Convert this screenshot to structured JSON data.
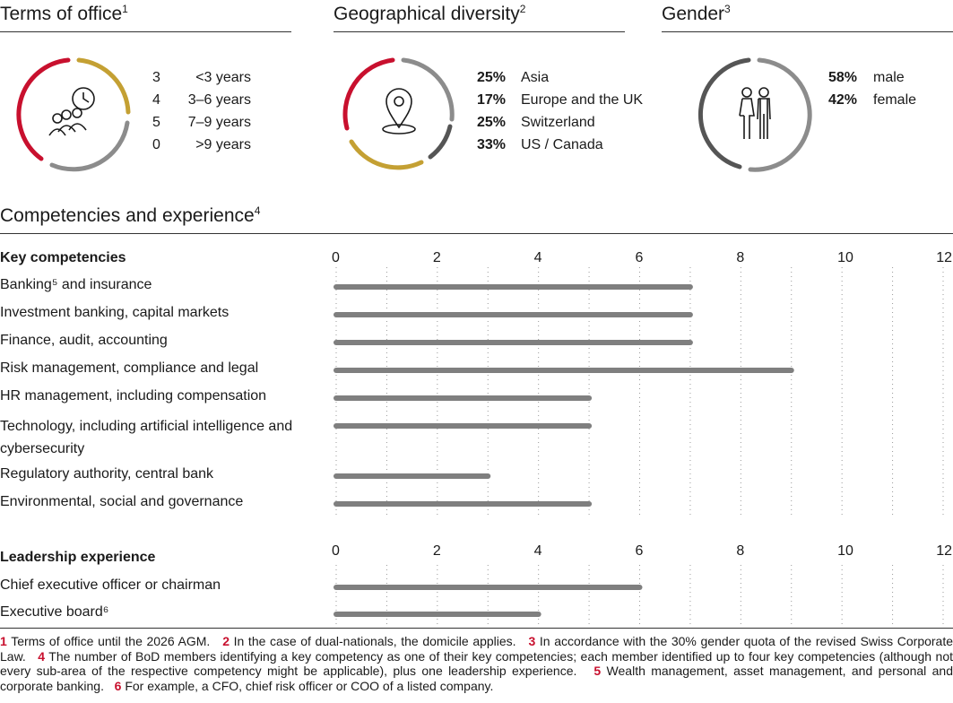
{
  "terms": {
    "title": "Terms of office",
    "sup": "1",
    "rows": [
      {
        "count": "3",
        "label": "<3 years"
      },
      {
        "count": "4",
        "label": "3–6 years"
      },
      {
        "count": "5",
        "label": "7–9 years"
      },
      {
        "count": "0",
        "label": ">9 years"
      }
    ],
    "colors": [
      "#c8102e",
      "#c4a033",
      "#8c8c8c"
    ]
  },
  "geo": {
    "title": "Geographical diversity",
    "sup": "2",
    "rows": [
      {
        "pct": "25%",
        "label": "Asia"
      },
      {
        "pct": "17%",
        "label": "Europe and the UK"
      },
      {
        "pct": "25%",
        "label": "Switzerland"
      },
      {
        "pct": "33%",
        "label": "US / Canada"
      }
    ],
    "colors": [
      "#c8102e",
      "#8c8c8c",
      "#555555",
      "#c4a033"
    ]
  },
  "gender": {
    "title": "Gender",
    "sup": "3",
    "rows": [
      {
        "pct": "58%",
        "label": "male"
      },
      {
        "pct": "42%",
        "label": "female"
      }
    ],
    "colors": [
      "#555555",
      "#8c8c8c"
    ]
  },
  "competencies": {
    "title": "Competencies and experience",
    "sup": "4"
  },
  "chart_data": [
    {
      "type": "bar",
      "title": "Key competencies",
      "categories": [
        "Banking⁵ and insurance",
        "Investment banking, capital markets",
        "Finance, audit, accounting",
        "Risk management, compliance and legal",
        "HR management, including compensation",
        "Technology, including artificial intelligence and cybersecurity",
        "Regulatory authority, central bank",
        "Environmental, social and governance"
      ],
      "values": [
        7,
        7,
        7,
        9,
        5,
        5,
        3,
        5
      ],
      "xlim": [
        0,
        12
      ],
      "ticks": [
        "0",
        "2",
        "4",
        "6",
        "8",
        "10",
        "12"
      ],
      "bar_color": "#7f7f7f"
    },
    {
      "type": "bar",
      "title": "Leadership experience",
      "categories": [
        "Chief executive officer or chairman",
        "Executive board⁶"
      ],
      "values": [
        6,
        4
      ],
      "xlim": [
        0,
        12
      ],
      "ticks": [
        "0",
        "2",
        "4",
        "6",
        "8",
        "10",
        "12"
      ],
      "bar_color": "#7f7f7f"
    }
  ],
  "footnotes": [
    {
      "num": "1",
      "text": "Terms of office until the 2026 AGM."
    },
    {
      "num": "2",
      "text": "In the case of dual-nationals, the domicile applies."
    },
    {
      "num": "3",
      "text": "In accordance with the 30% gender quota of the revised Swiss Corporate Law."
    },
    {
      "num": "4",
      "text": "The number of BoD members identifying a key competency as one of their key competencies; each member identified up to four key competencies (although not every sub-area of the respective competency might be applicable), plus one leadership experience."
    },
    {
      "num": "5",
      "text": "Wealth management, asset management, and personal and corporate banking."
    },
    {
      "num": "6",
      "text": "For example, a CFO, chief risk officer or COO of a listed company."
    }
  ]
}
